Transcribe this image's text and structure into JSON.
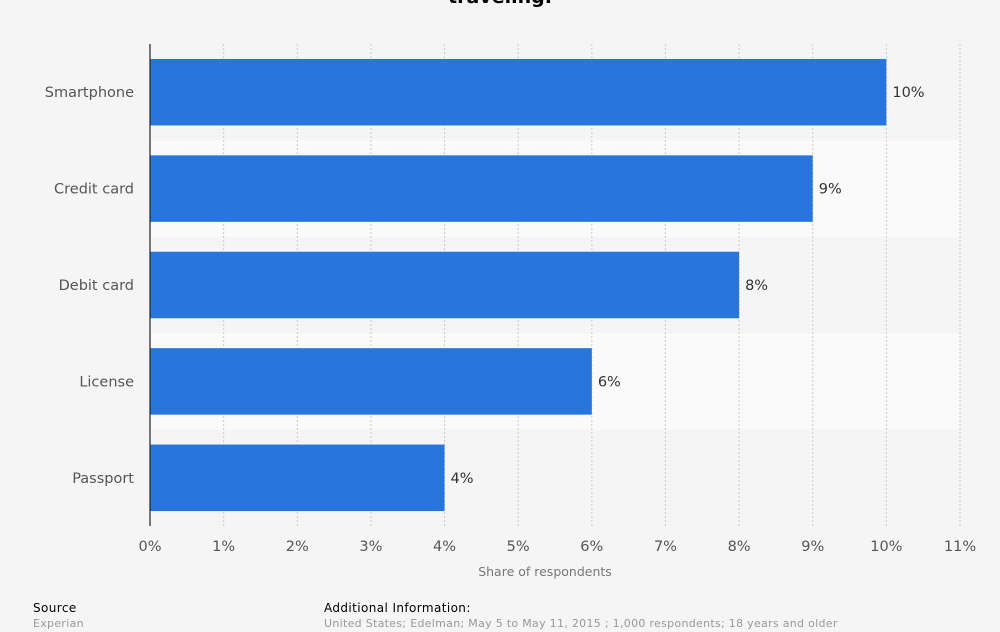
{
  "chart_data": {
    "type": "bar",
    "orientation": "horizontal",
    "title": "traveling.",
    "categories": [
      "Smartphone",
      "Credit card",
      "Debit card",
      "License",
      "Passport"
    ],
    "values": [
      10,
      9,
      8,
      6,
      4
    ],
    "value_labels": [
      "10%",
      "9%",
      "8%",
      "6%",
      "4%"
    ],
    "xlabel": "Share of respondents",
    "ylabel": "",
    "xlim": [
      0,
      11
    ],
    "xticks": [
      "0%",
      "1%",
      "2%",
      "3%",
      "4%",
      "5%",
      "6%",
      "7%",
      "8%",
      "9%",
      "10%",
      "11%"
    ],
    "grid": true,
    "bar_color": "#2876dd"
  },
  "footer": {
    "source_heading": "Source",
    "source_text": "Experian",
    "info_heading": "Additional Information:",
    "info_text": "United States; Edelman; May 5 to May 11, 2015 ; 1,000 respondents; 18 years and older"
  }
}
